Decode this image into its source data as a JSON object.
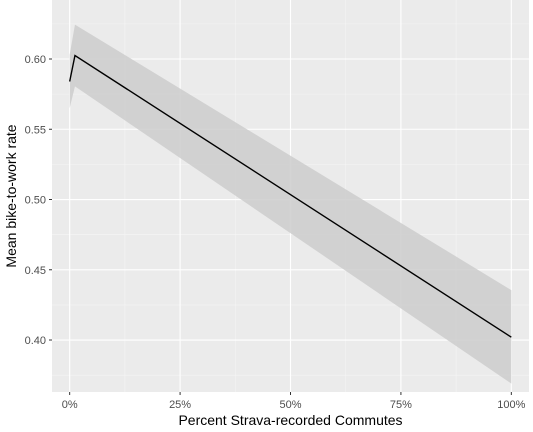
{
  "chart_data": {
    "type": "line",
    "title": "",
    "xlabel": "Percent Strava-recorded Commutes",
    "ylabel": "Mean bike-to-work rate",
    "xlim": [
      -4,
      104
    ],
    "ylim": [
      0.363,
      0.642
    ],
    "x_ticks": [
      0,
      25,
      50,
      75,
      100
    ],
    "x_tick_labels": [
      "0%",
      "25%",
      "50%",
      "75%",
      "100%"
    ],
    "y_ticks": [
      0.4,
      0.45,
      0.5,
      0.55,
      0.6
    ],
    "y_tick_labels": [
      "0.40",
      "0.45",
      "0.50",
      "0.55",
      "0.60"
    ],
    "grid": true,
    "series": [
      {
        "line": [
          {
            "x": 0,
            "y": 0.584
          },
          {
            "x": 1.2,
            "y": 0.6025
          },
          {
            "x": 100,
            "y": 0.402
          }
        ],
        "ribbon": [
          {
            "x": 0,
            "lower": 0.565,
            "upper": 0.603
          },
          {
            "x": 1.2,
            "lower": 0.5805,
            "upper": 0.6245
          },
          {
            "x": 100,
            "lower": 0.369,
            "upper": 0.4355
          }
        ],
        "color": "#000000",
        "ribbon_color": "#cccccc"
      }
    ],
    "colors": {
      "panel_background": "#ebebeb",
      "grid_major": "#ffffff",
      "grid_minor": "#f5f5f5"
    }
  }
}
